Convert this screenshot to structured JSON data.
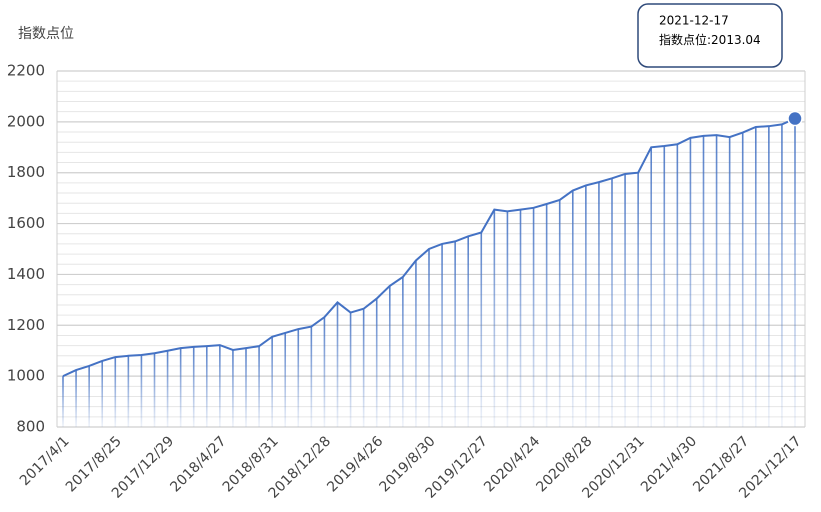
{
  "chart_data": {
    "type": "line",
    "y_title": "指数点位",
    "categories": [
      "2017/4/1",
      null,
      null,
      null,
      "2017/8/25",
      null,
      null,
      null,
      "2017/12/29",
      null,
      null,
      null,
      "2018/4/27",
      null,
      null,
      null,
      "2018/8/31",
      null,
      null,
      null,
      "2018/12/28",
      null,
      null,
      null,
      "2019/4/26",
      null,
      null,
      null,
      "2019/8/30",
      null,
      null,
      null,
      "2019/12/27",
      null,
      null,
      null,
      "2020/4/24",
      null,
      null,
      null,
      "2020/8/28",
      null,
      null,
      null,
      "2020/12/31",
      null,
      null,
      null,
      "2021/4/30",
      null,
      null,
      null,
      "2021/8/27",
      null,
      null,
      null,
      "2021/12/17"
    ],
    "series": [
      {
        "name": "指数点位",
        "color": "#4472c4",
        "values": [
          1000,
          1024,
          1040,
          1060,
          1075,
          1080,
          1083,
          1090,
          1100,
          1110,
          1115,
          1118,
          1122,
          1103,
          1110,
          1118,
          1155,
          1170,
          1185,
          1195,
          1232,
          1290,
          1250,
          1265,
          1305,
          1355,
          1390,
          1455,
          1500,
          1520,
          1530,
          1550,
          1565,
          1655,
          1648,
          1655,
          1662,
          1677,
          1693,
          1730,
          1750,
          1763,
          1778,
          1795,
          1800,
          1900,
          1905,
          1912,
          1937,
          1945,
          1948,
          1940,
          1958,
          1980,
          1983,
          1990,
          2013.04
        ]
      }
    ],
    "ylim": [
      800,
      2200
    ],
    "yticks": [
      800,
      1000,
      1200,
      1400,
      1600,
      1800,
      2000,
      2200
    ],
    "grid": true,
    "tooltip": {
      "date": "2021-12-17",
      "label": "指数点位:"
    }
  }
}
